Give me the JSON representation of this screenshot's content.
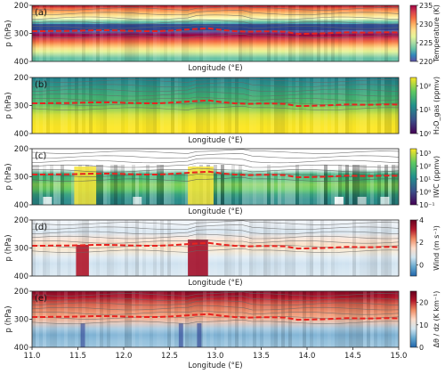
{
  "chart_data": [
    {
      "type": "heatmap",
      "panel_label": "(a)",
      "xlabel": "Longitude (°E)",
      "ylabel": "p (hPa)",
      "xlim": [
        11.0,
        15.0
      ],
      "ylim": [
        400,
        200
      ],
      "yticks": [
        200,
        300,
        400
      ],
      "xticks": [],
      "colorbar": {
        "label": "Temperature (K)",
        "range": [
          220,
          235
        ],
        "ticks": [
          220,
          225,
          230,
          235
        ],
        "cmap": "spectral",
        "log": false
      },
      "tropopause_dashed_red_p": [
        292,
        292,
        291,
        291,
        290,
        289,
        289,
        290,
        291,
        292,
        292,
        290,
        287,
        284,
        282,
        288,
        292,
        294,
        293,
        293,
        294,
        302,
        301,
        300,
        298,
        296,
        297,
        297,
        296,
        297
      ]
    },
    {
      "type": "heatmap",
      "panel_label": "(b)",
      "xlabel": "Longitude (°E)",
      "ylabel": "p (hPa)",
      "xlim": [
        11.0,
        15.0
      ],
      "ylim": [
        400,
        200
      ],
      "yticks": [
        200,
        300,
        400
      ],
      "xticks": [],
      "colorbar": {
        "label": "H₂O_gas (ppmv)",
        "range": [
          1,
          200
        ],
        "ticks": [
          "10⁰",
          "10¹",
          "10²"
        ],
        "cmap": "viridis",
        "log": true
      },
      "tropopause_dashed_red_p": [
        292,
        292,
        291,
        291,
        290,
        289,
        289,
        290,
        291,
        292,
        292,
        290,
        287,
        284,
        282,
        288,
        292,
        294,
        293,
        293,
        294,
        302,
        301,
        300,
        298,
        296,
        297,
        297,
        296,
        297
      ]
    },
    {
      "type": "heatmap",
      "panel_label": "(c)",
      "xlabel": "Longitude (°E)",
      "ylabel": "p (hPa)",
      "xlim": [
        11.0,
        15.0
      ],
      "ylim": [
        400,
        200
      ],
      "yticks": [
        200,
        300,
        400
      ],
      "xticks": [],
      "colorbar": {
        "label": "IWC (ppmv)",
        "range": [
          0.1,
          1000
        ],
        "ticks": [
          "10⁻¹",
          "10⁰",
          "10¹",
          "10²",
          "10³"
        ],
        "cmap": "viridis",
        "log": true
      },
      "tropopause_dashed_red_p": [
        292,
        292,
        291,
        291,
        290,
        289,
        289,
        290,
        291,
        292,
        292,
        290,
        287,
        284,
        282,
        288,
        292,
        294,
        293,
        293,
        294,
        302,
        301,
        300,
        298,
        296,
        297,
        297,
        296,
        297
      ]
    },
    {
      "type": "heatmap",
      "panel_label": "(d)",
      "xlabel": "Longitude (°E)",
      "ylabel": "p (hPa)",
      "xlim": [
        11.0,
        15.0
      ],
      "ylim": [
        400,
        200
      ],
      "yticks": [
        200,
        300,
        400
      ],
      "xticks": [],
      "colorbar": {
        "label": "Wind (m s⁻¹)",
        "range": [
          -1,
          4
        ],
        "ticks": [
          0,
          2,
          4
        ],
        "cmap": "diverging",
        "log": false
      },
      "tropopause_dashed_red_p": [
        292,
        292,
        291,
        291,
        290,
        289,
        289,
        290,
        291,
        292,
        292,
        290,
        287,
        284,
        282,
        288,
        292,
        294,
        293,
        293,
        294,
        302,
        301,
        300,
        298,
        296,
        297,
        297,
        296,
        297
      ]
    },
    {
      "type": "heatmap",
      "panel_label": "(e)",
      "xlabel": "Longitude (°E)",
      "ylabel": "p (hPa)",
      "xlim": [
        11.0,
        15.0
      ],
      "ylim": [
        400,
        200
      ],
      "yticks": [
        200,
        300,
        400
      ],
      "xticks": [
        11.0,
        11.5,
        12.0,
        12.5,
        13.0,
        13.5,
        14.0,
        14.5,
        15.0
      ],
      "colorbar": {
        "label": "Δθ / dz (K km⁻¹)",
        "range": [
          0,
          25
        ],
        "ticks": [
          0,
          10,
          20
        ],
        "cmap": "diverging",
        "log": false
      },
      "tropopause_dashed_red_p": [
        292,
        292,
        291,
        291,
        290,
        289,
        289,
        290,
        291,
        292,
        292,
        290,
        287,
        284,
        282,
        288,
        292,
        294,
        293,
        293,
        294,
        302,
        301,
        300,
        298,
        296,
        297,
        297,
        296,
        297
      ]
    }
  ]
}
